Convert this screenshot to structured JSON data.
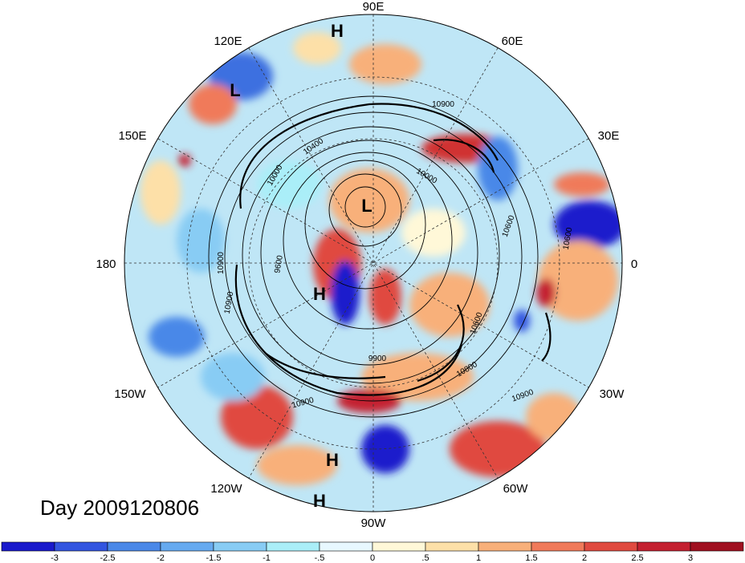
{
  "title": "Day 2009120806",
  "longitude_labels": {
    "n": "90E",
    "ne": "60E",
    "e_upper": "30E",
    "e": "0",
    "e_lower": "30W",
    "se": "60W",
    "s": "90W",
    "sw": "120W",
    "w_lower": "150W",
    "w": "180",
    "w_upper": "150E",
    "nw": "120E"
  },
  "pressure_centers": [
    {
      "type": "H"
    },
    {
      "type": "L"
    },
    {
      "type": "L"
    },
    {
      "type": "H"
    },
    {
      "type": "H"
    },
    {
      "type": "H"
    }
  ],
  "contour_labels": [
    "10900",
    "10900",
    "10900",
    "10900",
    "10900",
    "10800",
    "10600",
    "10600",
    "10600",
    "10400",
    "10000",
    "10000",
    "9600",
    "9900"
  ],
  "colorbar": {
    "ticks": [
      "-3",
      "-2.5",
      "-2",
      "-1.5",
      "-1",
      "-.5",
      "0",
      ".5",
      "1",
      "1.5",
      "2",
      "2.5",
      "3"
    ],
    "colors": [
      "#1a1acc",
      "#3355e0",
      "#4a88e8",
      "#66aaf0",
      "#88ccf4",
      "#aaeef8",
      "#e8f8ff",
      "#fff8d8",
      "#fde0a8",
      "#f8b07a",
      "#f07a5a",
      "#e04a40",
      "#c42030",
      "#a01020"
    ]
  }
}
